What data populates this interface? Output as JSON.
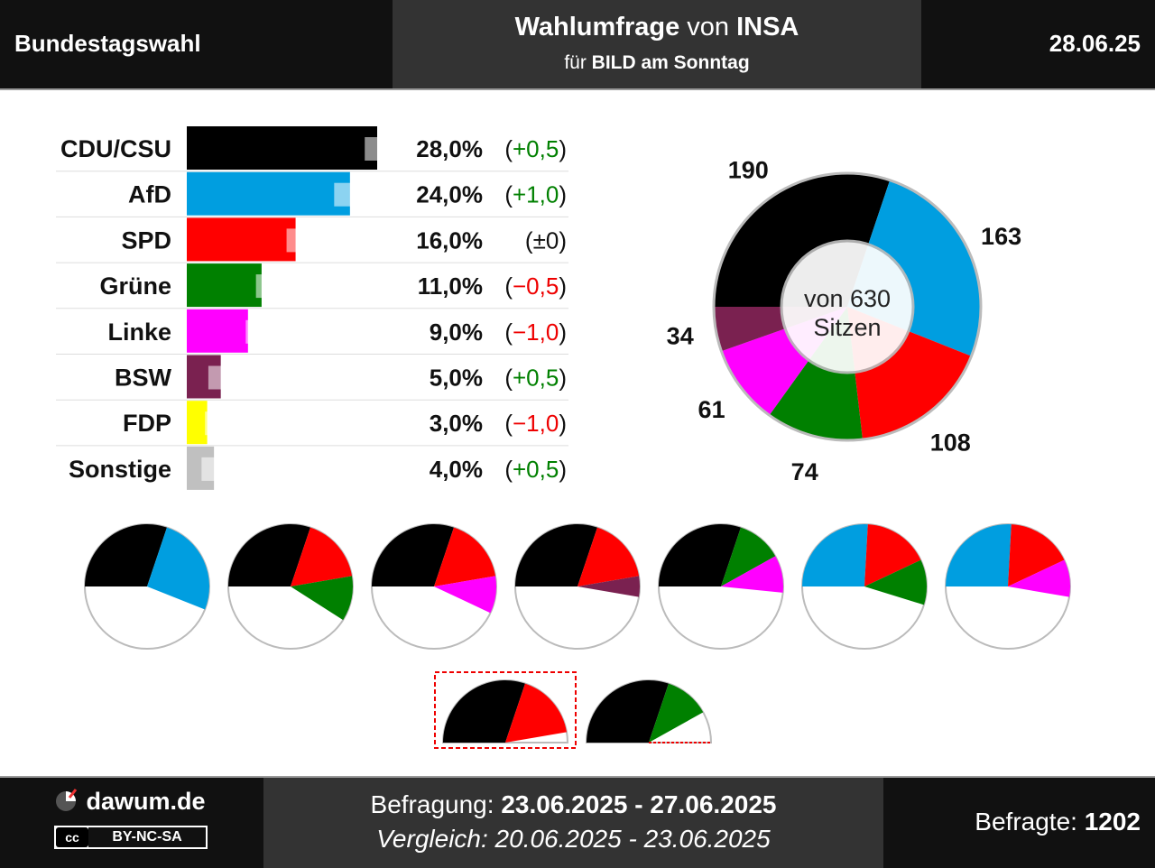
{
  "header": {
    "left": "Bundestagswahl",
    "title_bold1": "Wahlumfrage",
    "title_mid": " von ",
    "title_bold2": "INSA",
    "sub_pre": "für ",
    "sub_bold": "BILD am Sonntag",
    "date": "28.06.25"
  },
  "chart_data": {
    "type": "bar",
    "categories": [
      "CDU/CSU",
      "AfD",
      "SPD",
      "Grüne",
      "Linke",
      "BSW",
      "FDP",
      "Sonstige"
    ],
    "values": [
      28.0,
      24.0,
      16.0,
      11.0,
      9.0,
      5.0,
      3.0,
      4.0
    ],
    "value_labels": [
      "28,0%",
      "24,0%",
      "16,0%",
      "11,0%",
      "9,0%",
      "5,0%",
      "3,0%",
      "4,0%"
    ],
    "change_labels": [
      "(+0,5)",
      "(+1,0)",
      "(±0)",
      "(−0,5)",
      "(−1,0)",
      "(+0,5)",
      "(−1,0)",
      "(+0,5)"
    ],
    "change_values": [
      0.5,
      1.0,
      0.0,
      -0.5,
      -1.0,
      0.5,
      -1.0,
      0.5
    ],
    "colors": [
      "#000000",
      "#009ee0",
      "#ff0000",
      "#008000",
      "#ff00ff",
      "#7a2150",
      "#ffff00",
      "#c0c0c0"
    ],
    "seat_chart": {
      "type": "pie",
      "center_label_1": "von 630",
      "center_label_2": "Sitzen",
      "total": 630,
      "parties": [
        "CDU/CSU",
        "AfD",
        "SPD",
        "Grüne",
        "Linke",
        "BSW"
      ],
      "seats": [
        190,
        163,
        108,
        74,
        61,
        34
      ],
      "seat_labels": [
        "190",
        "163",
        "108",
        "74",
        "61",
        "34"
      ],
      "colors": [
        "#000000",
        "#009ee0",
        "#ff0000",
        "#008000",
        "#ff00ff",
        "#7a2150"
      ]
    },
    "coalitions": [
      {
        "parties": [
          "CDU/CSU",
          "AfD"
        ],
        "seats": [
          190,
          163
        ]
      },
      {
        "parties": [
          "CDU/CSU",
          "SPD",
          "Grüne"
        ],
        "seats": [
          190,
          108,
          74
        ]
      },
      {
        "parties": [
          "CDU/CSU",
          "SPD",
          "Linke"
        ],
        "seats": [
          190,
          108,
          61
        ]
      },
      {
        "parties": [
          "CDU/CSU",
          "SPD",
          "BSW"
        ],
        "seats": [
          190,
          108,
          34
        ]
      },
      {
        "parties": [
          "CDU/CSU",
          "Grüne",
          "Linke"
        ],
        "seats": [
          190,
          74,
          61
        ]
      },
      {
        "parties": [
          "AfD",
          "SPD",
          "Grüne"
        ],
        "seats": [
          163,
          108,
          74
        ]
      },
      {
        "parties": [
          "AfD",
          "SPD",
          "Linke"
        ],
        "seats": [
          163,
          108,
          61
        ]
      }
    ],
    "coalitions_row2": [
      {
        "parties": [
          "CDU/CSU",
          "SPD"
        ],
        "seats": [
          190,
          108
        ],
        "highlighted": true
      },
      {
        "parties": [
          "CDU/CSU",
          "Grüne"
        ],
        "seats": [
          190,
          74
        ],
        "highlighted": false
      }
    ]
  },
  "footer": {
    "logo": "dawum.de",
    "license": "BY-NC-SA",
    "license_icon": "cc-icon",
    "survey_label": "Befragung: ",
    "survey_dates": "23.06.2025 - 27.06.2025",
    "compare": "Vergleich: 20.06.2025 - 23.06.2025",
    "sample_label": "Befragte: ",
    "sample_size": "1202"
  }
}
